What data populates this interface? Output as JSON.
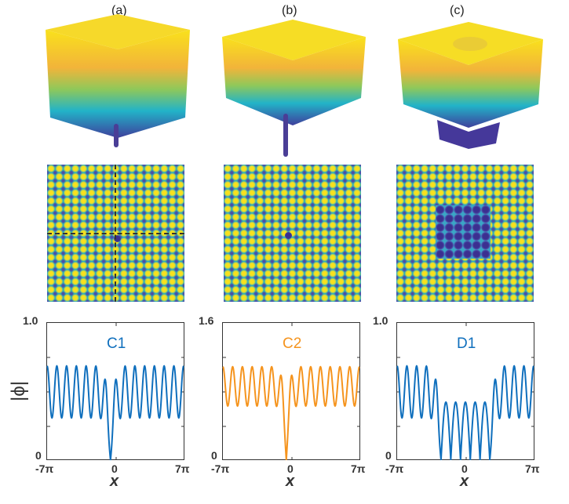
{
  "panels": [
    {
      "label": "(a)"
    },
    {
      "label": "(b)"
    },
    {
      "label": "(c)"
    }
  ],
  "colors": {
    "blue": "#0f6fbd",
    "orange": "#f5941e",
    "yellow": "#f9e11c",
    "teal": "#27abbd",
    "darkblue": "#3b2f90"
  },
  "chart_data": [
    {
      "type": "line",
      "title": "C1",
      "color": "#0f6fbd",
      "xlabel": "x",
      "ylabel": "|ϕ|",
      "xlim": [
        -7,
        7
      ],
      "x_unit": "pi",
      "ylim": [
        0,
        1.0
      ],
      "xticks": [
        "-7π",
        "0",
        "7π"
      ],
      "yticks": [
        "0",
        "1.0"
      ],
      "model": {
        "kind": "single-dip",
        "mean": 0.5,
        "amp": 0.19,
        "period_pi": 1,
        "dip_center_pi": -0.5,
        "dip_width": 1.3
      },
      "summary": {
        "max": 0.69,
        "min_periodic": 0.31,
        "dip_min": 0.0,
        "inner_peak": 0.57
      }
    },
    {
      "type": "line",
      "title": "C2",
      "color": "#f5941e",
      "xlabel": "x",
      "ylabel": "",
      "xlim": [
        -7,
        7
      ],
      "x_unit": "pi",
      "ylim": [
        0,
        1.6
      ],
      "xticks": [
        "-7π",
        "0",
        "7π"
      ],
      "yticks": [
        "0",
        "1.6"
      ],
      "model": {
        "kind": "single-dip",
        "mean": 0.865,
        "amp": 0.23,
        "period_pi": 1,
        "dip_center_pi": -0.5,
        "dip_width": 1.1
      },
      "summary": {
        "max": 1.1,
        "min_periodic": 0.635,
        "dip_min": 0.0,
        "inner_peak": 0.99
      }
    },
    {
      "type": "line",
      "title": "D1",
      "color": "#0f6fbd",
      "xlabel": "x",
      "ylabel": "",
      "xlim": [
        -7,
        7
      ],
      "x_unit": "pi",
      "ylim": [
        0,
        1.0
      ],
      "xticks": [
        "-7π",
        "0",
        "7π"
      ],
      "yticks": [
        "0",
        "1.0"
      ],
      "model": {
        "kind": "domain",
        "mean": 0.5,
        "amp": 0.19,
        "period_pi": 1,
        "core_half_width_pi": 2.5,
        "core_amp": 0.425,
        "edge_width": 1.3
      },
      "summary": {
        "max": 0.68,
        "min_periodic": 0.3,
        "core_peak": 0.425,
        "core_min": 0.0
      }
    }
  ]
}
